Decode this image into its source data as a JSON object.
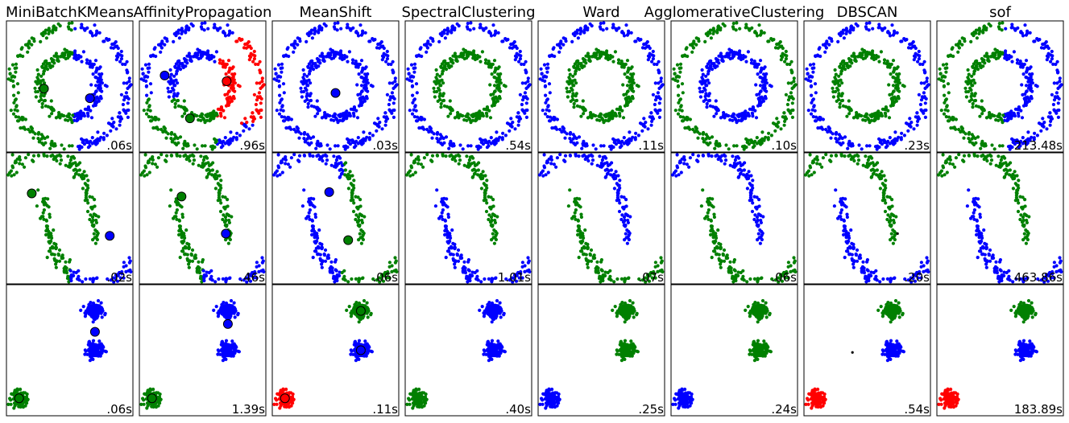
{
  "figure": {
    "colors": {
      "blue": "#0000ff",
      "green": "#008000",
      "red": "#ff0000",
      "noise": "#000000"
    }
  },
  "chart_data": {
    "type": "scatter",
    "columns": [
      "MiniBatchKMeans",
      "AffinityPropagation",
      "MeanShift",
      "SpectralClustering",
      "Ward",
      "AgglomerativeClustering",
      "DBSCAN",
      "sof"
    ],
    "rows": [
      "circles",
      "moons",
      "blobs"
    ],
    "grid": false,
    "timing_placement": "bottom-right",
    "panels": [
      [
        {
          "time": ".06s",
          "coloring": "halves",
          "centers": [
            {
              "x": -0.61,
              "y": -0.05,
              "c": "green"
            },
            {
              "x": 0.48,
              "y": -0.27,
              "c": "blue"
            }
          ]
        },
        {
          "time": ".96s",
          "coloring": "ap",
          "centers": [
            {
              "x": -0.9,
              "y": 0.25,
              "c": "blue"
            },
            {
              "x": 0.57,
              "y": 0.12,
              "c": "red"
            },
            {
              "x": -0.3,
              "y": -0.73,
              "c": "green"
            }
          ]
        },
        {
          "time": ".03s",
          "coloring": "all_blue",
          "centers": [
            {
              "x": 0.0,
              "y": -0.15,
              "c": "blue"
            }
          ]
        },
        {
          "time": ".54s",
          "coloring": "ring",
          "centers": []
        },
        {
          "time": ".11s",
          "coloring": "ring",
          "centers": []
        },
        {
          "time": ".10s",
          "coloring": "ring_inverse",
          "centers": []
        },
        {
          "time": ".23s",
          "coloring": "ring",
          "centers": []
        },
        {
          "time": "213.48s",
          "coloring": "halves",
          "centers": []
        }
      ],
      [
        {
          "time": ".02s",
          "coloring": "split",
          "split": 0.45,
          "centers": [
            {
              "x": -0.9,
              "y": 0.57,
              "c": "green"
            },
            {
              "x": 0.95,
              "y": -0.4,
              "c": "blue"
            }
          ]
        },
        {
          "time": ".46s",
          "coloring": "split",
          "split": 0.45,
          "centers": [
            {
              "x": -0.5,
              "y": 0.5,
              "c": "green"
            },
            {
              "x": 0.55,
              "y": -0.35,
              "c": "blue"
            }
          ]
        },
        {
          "time": ".06s",
          "coloring": "split_inverse",
          "split": 0.5,
          "centers": [
            {
              "x": -0.15,
              "y": 0.6,
              "c": "blue"
            },
            {
              "x": 0.3,
              "y": -0.5,
              "c": "green"
            }
          ]
        },
        {
          "time": "1.01s",
          "coloring": "moons",
          "centers": []
        },
        {
          "time": ".07s",
          "coloring": "moons_inverse",
          "centers": []
        },
        {
          "time": ".06s",
          "coloring": "moons_inverse",
          "centers": []
        },
        {
          "time": ".20s",
          "coloring": "moons",
          "centers": [],
          "noise": [
            {
              "x": 0.72,
              "y": -0.35
            }
          ]
        },
        {
          "time": "463.86s",
          "coloring": "moons",
          "centers": []
        }
      ],
      [
        {
          "time": ".06s",
          "colors3": [
            "green",
            "blue",
            "blue"
          ],
          "centers": [
            {
              "x": -1.2,
              "y": -1.1,
              "c": "green"
            },
            {
              "x": 0.6,
              "y": 0.42,
              "c": "blue"
            }
          ]
        },
        {
          "time": "1.39s",
          "colors3": [
            "green",
            "blue",
            "blue"
          ],
          "centers": [
            {
              "x": -1.2,
              "y": -1.1,
              "c": "green"
            },
            {
              "x": 0.6,
              "y": 0.6,
              "c": "blue"
            }
          ]
        },
        {
          "time": ".11s",
          "colors3": [
            "red",
            "blue",
            "green"
          ],
          "centers": [
            {
              "x": -1.2,
              "y": -1.1,
              "c": "red"
            },
            {
              "x": 0.6,
              "y": 0.0,
              "c": "blue"
            },
            {
              "x": 0.6,
              "y": 0.9,
              "c": "green"
            }
          ]
        },
        {
          "time": ".40s",
          "colors3": [
            "green",
            "blue",
            "blue"
          ],
          "centers": []
        },
        {
          "time": ".25s",
          "colors3": [
            "blue",
            "green",
            "green"
          ],
          "centers": []
        },
        {
          "time": ".24s",
          "colors3": [
            "blue",
            "green",
            "green"
          ],
          "centers": []
        },
        {
          "time": ".54s",
          "colors3": [
            "red",
            "blue",
            "green"
          ],
          "centers": [],
          "noise": [
            {
              "x": -0.35,
              "y": -0.05
            }
          ]
        },
        {
          "time": "183.89s",
          "colors3": [
            "red",
            "blue",
            "green"
          ],
          "centers": []
        }
      ]
    ]
  }
}
